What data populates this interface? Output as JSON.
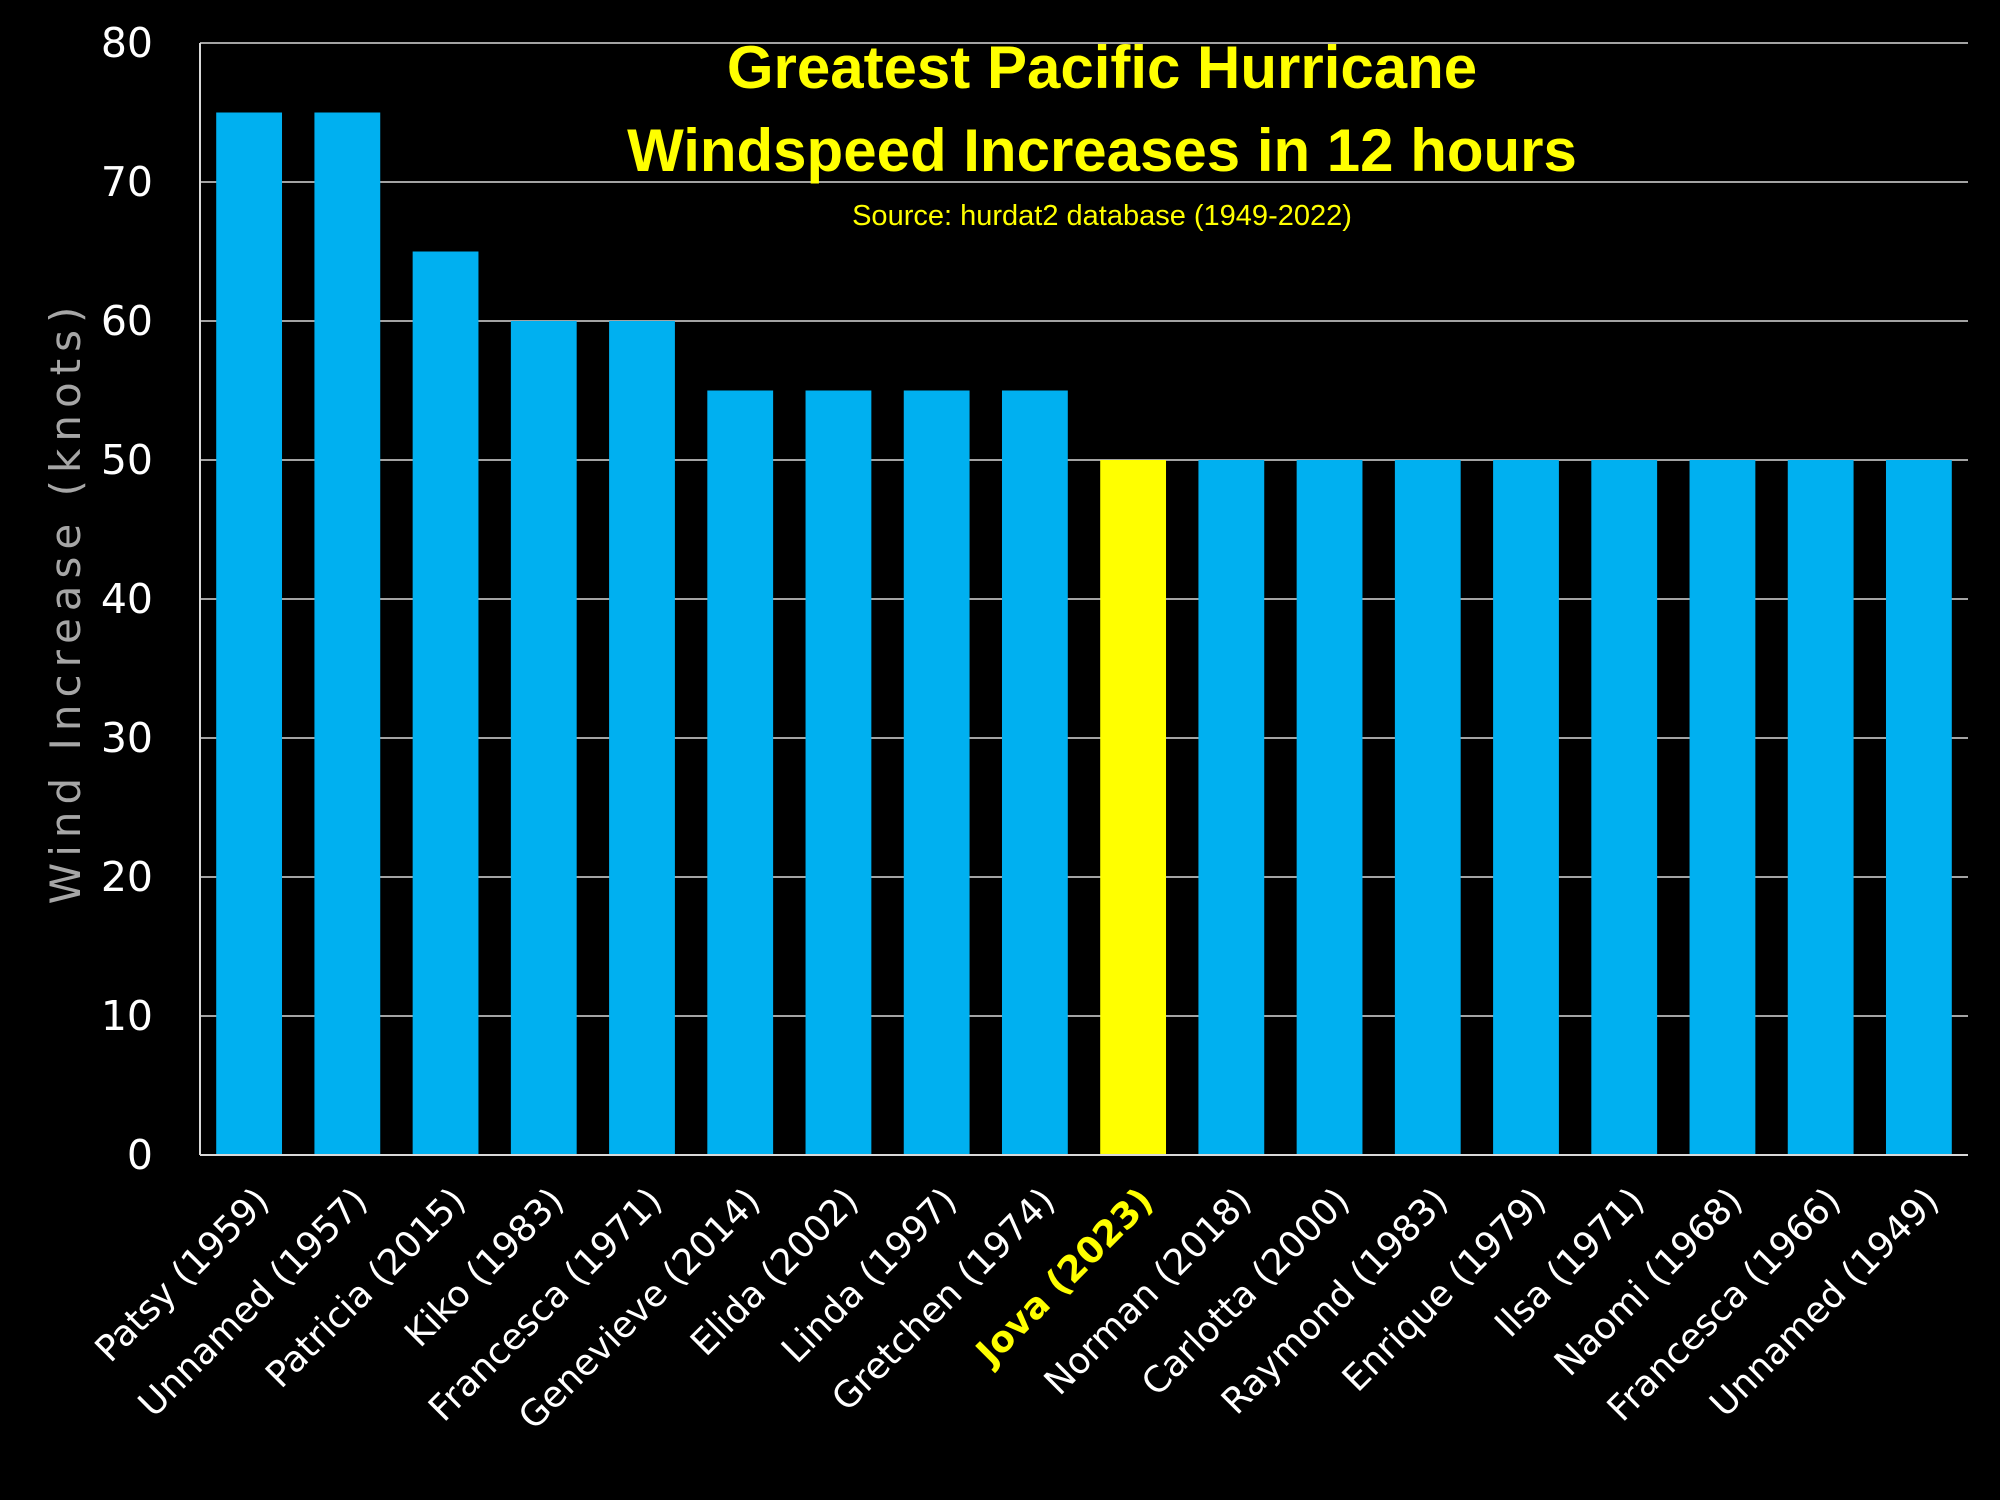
{
  "chart_data": {
    "type": "bar",
    "title_line1": "Greatest Pacific Hurricane",
    "title_line2": "Windspeed Increases in 12 hours",
    "subtitle": "Source: hurdat2 database (1949-2022)",
    "xlabel": "",
    "ylabel": "Wind Increase (knots)",
    "ylim": [
      0,
      80
    ],
    "yticks": [
      0,
      10,
      20,
      30,
      40,
      50,
      60,
      70,
      80
    ],
    "grid": true,
    "categories": [
      "Patsy (1959)",
      "Unnamed (1957)",
      "Patricia (2015)",
      "Kiko (1983)",
      "Francesca (1971)",
      "Genevieve (2014)",
      "Elida (2002)",
      "Linda (1997)",
      "Gretchen (1974)",
      "Jova (2023)",
      "Norman (2018)",
      "Carlotta (2000)",
      "Raymond (1983)",
      "Enrique (1979)",
      "Ilsa (1971)",
      "Naomi (1968)",
      "Francesca (1966)",
      "Unnamed (1949)"
    ],
    "values": [
      75,
      75,
      65,
      60,
      60,
      55,
      55,
      55,
      55,
      50,
      50,
      50,
      50,
      50,
      50,
      50,
      50,
      50
    ],
    "highlight": [
      "Jova (2023)"
    ],
    "colors": {
      "bar": "#00b0f0",
      "highlight": "#ffff00",
      "title": "#ffff00",
      "grid": "#d9d9d9",
      "tick_text": "#ffffff",
      "ylabel_text": "#a6a6a6",
      "background": "#000000"
    }
  }
}
